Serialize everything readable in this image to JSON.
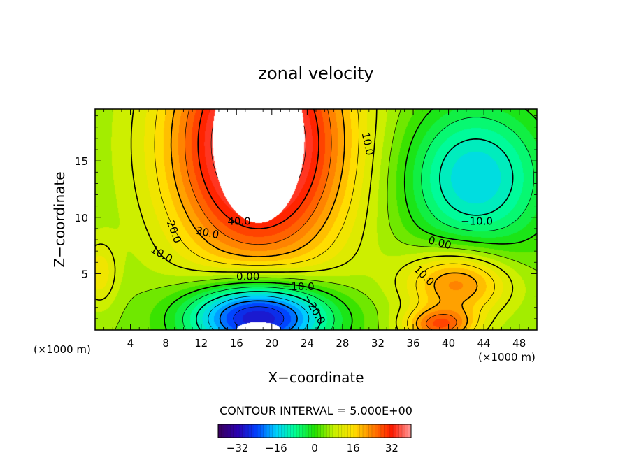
{
  "chart_data": {
    "type": "heatmap",
    "title": "zonal velocity",
    "xlabel": "X−coordinate",
    "ylabel": "Z−coordinate",
    "x_unit": "(×1000 m)",
    "xlim": [
      0,
      50
    ],
    "ylim": [
      0,
      19.6
    ],
    "xticks": [
      4,
      8,
      12,
      16,
      20,
      24,
      28,
      32,
      36,
      40,
      44,
      48
    ],
    "yticks": [
      5,
      10,
      15
    ],
    "contour_interval_text": "CONTOUR INTERVAL = 5.000E+00",
    "contour_interval": 5,
    "colorbar": {
      "min": -40,
      "max": 40,
      "ticks": [
        -32,
        -16,
        0,
        16,
        32
      ],
      "tick_labels": [
        "−32",
        "−16",
        "0",
        "16",
        "32"
      ],
      "colors": [
        "#3a005a",
        "#2b00b0",
        "#0040ff",
        "#00d0ff",
        "#00ff90",
        "#20e000",
        "#c8f000",
        "#ffe000",
        "#ff8000",
        "#ff1a00",
        "#ff9a9a"
      ]
    },
    "fields": {
      "background": 5,
      "features": [
        {
          "name": "upper-jet-core",
          "x": 18.5,
          "z": 16.5,
          "rx": 10,
          "rz": 11,
          "value": 45
        },
        {
          "name": "low-level-minimum",
          "x": 18.5,
          "z": 1.2,
          "rx": 8,
          "rz": 3.2,
          "value": -35
        },
        {
          "name": "upper-right-minimum",
          "x": 43,
          "z": 13.5,
          "rx": 8,
          "rz": 6.5,
          "value": -15
        },
        {
          "name": "right-low-maximum",
          "x": 41,
          "z": 4.2,
          "rx": 6,
          "rz": 3.0,
          "value": 25
        },
        {
          "name": "lower-right-maximum",
          "x": 39,
          "z": 0.4,
          "rx": 4,
          "rz": 1.5,
          "value": 25
        },
        {
          "name": "left-edge-maximum",
          "x": 0.5,
          "z": 5,
          "rx": 2,
          "rz": 3,
          "value": 14
        }
      ],
      "undefined_regions": [
        {
          "name": "missing-top",
          "x": 18.5,
          "z": 17,
          "rx": 5.2,
          "rz": 7.5
        },
        {
          "name": "missing-bottom",
          "x": 18.5,
          "z": 0,
          "rx": 2.5,
          "rz": 0.7
        }
      ]
    },
    "contour_labels": [
      {
        "text": "40.0",
        "x": 16.3,
        "z": 9.6,
        "angle": 0
      },
      {
        "text": "30.0",
        "x": 12.7,
        "z": 8.6,
        "angle": 12
      },
      {
        "text": "20.0",
        "x": 8.9,
        "z": 8.7,
        "angle": 70
      },
      {
        "text": "10.0",
        "x": 7.5,
        "z": 6.7,
        "angle": 30
      },
      {
        "text": "0.00",
        "x": 17.3,
        "z": 4.7,
        "angle": 0
      },
      {
        "text": "−10.0",
        "x": 23,
        "z": 3.8,
        "angle": 0
      },
      {
        "text": "−20.0",
        "x": 24.8,
        "z": 1.8,
        "angle": 60
      },
      {
        "text": "10.0",
        "x": 30.8,
        "z": 16.5,
        "angle": 78
      },
      {
        "text": "−10.0",
        "x": 43.2,
        "z": 9.6,
        "angle": 0
      },
      {
        "text": "0.00",
        "x": 39,
        "z": 7.7,
        "angle": 15
      },
      {
        "text": "10.0",
        "x": 37.2,
        "z": 4.8,
        "angle": 45
      }
    ]
  }
}
